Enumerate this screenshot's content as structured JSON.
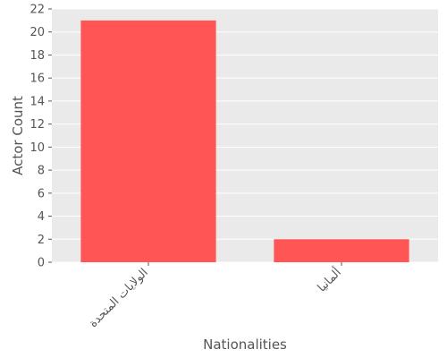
{
  "chart_data": {
    "type": "bar",
    "categories": [
      "الولايات المتحدة",
      "ألمانيا"
    ],
    "values": [
      21,
      2
    ],
    "title": "",
    "xlabel": "Nationalities",
    "ylabel": "Actor Count",
    "ylim": [
      0,
      22
    ],
    "yticks": [
      0,
      2,
      4,
      6,
      8,
      10,
      12,
      14,
      16,
      18,
      20,
      22
    ],
    "grid": true,
    "colors": {
      "bar": "#ff5555",
      "plot_background": "#eaeaea",
      "grid": "#ffffff",
      "text": "#555555"
    }
  }
}
